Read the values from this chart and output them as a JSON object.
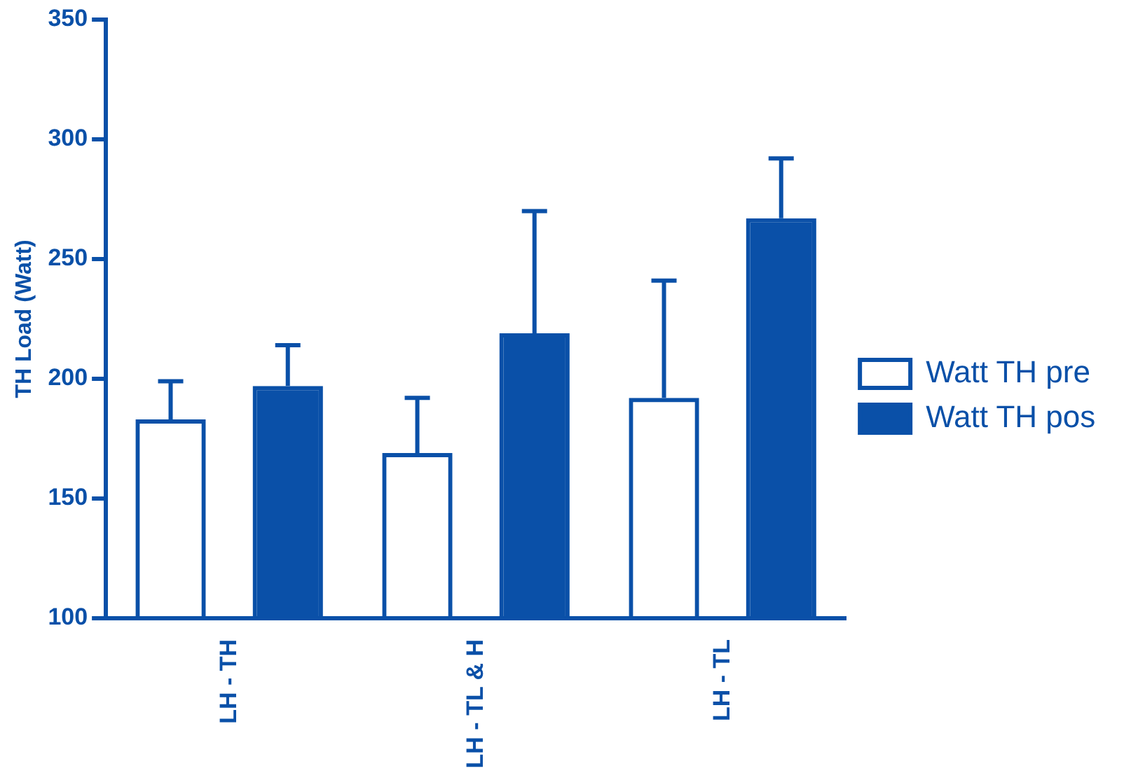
{
  "chart_data": {
    "type": "bar",
    "ylabel": "TH Load (Watt)",
    "categories": [
      "LH - TH",
      "LH - TL & H",
      "LH - TL"
    ],
    "series": [
      {
        "name": "Watt TH pre",
        "color": "#0a50a8",
        "values": [
          183,
          169,
          192
        ],
        "errors": [
          [
            183,
            199
          ],
          [
            169,
            192
          ],
          [
            192,
            241
          ]
        ]
      },
      {
        "name": "Watt TH pos",
        "color": "#0a50a8",
        "values": [
          197,
          219,
          267
        ],
        "errors": [
          [
            197,
            214
          ],
          [
            219,
            270
          ],
          [
            267,
            292
          ]
        ]
      }
    ],
    "ylim": [
      100,
      350
    ],
    "yticks": [
      100,
      150,
      200,
      250,
      300,
      350
    ],
    "grid": false,
    "legend": "right"
  }
}
